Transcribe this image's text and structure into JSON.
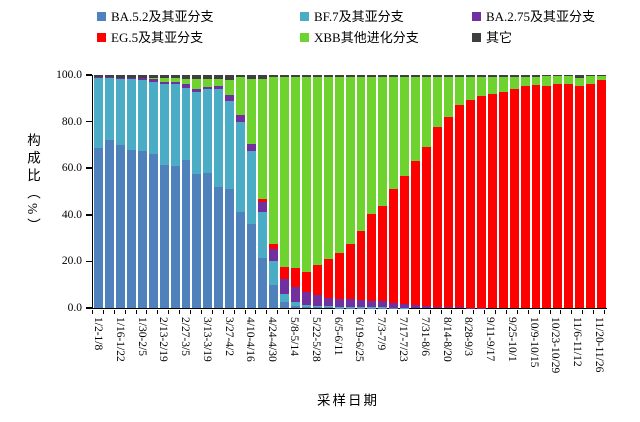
{
  "chart_data": {
    "type": "bar",
    "stacked": true,
    "title": "",
    "xlabel": "采样日期",
    "ylabel": "构成比（%）",
    "ylim": [
      0,
      100
    ],
    "ytick_step": 20,
    "ytick_labels": [
      "0.0",
      "20.0",
      "40.0",
      "60.0",
      "80.0",
      "100.0"
    ],
    "grid": false,
    "legend_position": "top",
    "n_bars": 47,
    "categories": [
      "1/2-1/8",
      "",
      "1/16-1/22",
      "",
      "1/30-2/5",
      "",
      "2/13-2/19",
      "",
      "2/27-3/5",
      "",
      "3/13-3/19",
      "",
      "3/27-4/2",
      "",
      "4/10-4/16",
      "",
      "4/24-4/30",
      "",
      "5/8-5/14",
      "",
      "5/22-5/28",
      "",
      "6/5-6/11",
      "",
      "6/19-6/25",
      "",
      "7/3-7/9",
      "",
      "7/17-7/23",
      "",
      "7/31-8/6",
      "",
      "8/14-8/20",
      "",
      "8/28-9/3",
      "",
      "9/11-9/17",
      "",
      "9/25-10/1",
      "",
      "10/9-10/15",
      "",
      "10/23-10/29",
      "",
      "11/6-11/12",
      "",
      "11/20-11/26"
    ],
    "series": [
      {
        "name": "BA.5.2及其亚分支",
        "color": "#4F81BD",
        "values": [
          68.5,
          72,
          70,
          68,
          67.5,
          66.3,
          61.3,
          61,
          63.5,
          57.5,
          58,
          52,
          51,
          41,
          36,
          21.5,
          10,
          2.5,
          1,
          0.5,
          0.5,
          0.3,
          0.2,
          0.2,
          0.2,
          0.1,
          0.1,
          0.1,
          0,
          0,
          0,
          0,
          0,
          0,
          0,
          0,
          0,
          0,
          0,
          0,
          0,
          0,
          0,
          0,
          0,
          0,
          0
        ]
      },
      {
        "name": "BF.7及其亚分支",
        "color": "#4BACC6",
        "values": [
          30.3,
          26.7,
          28.2,
          30.2,
          30.5,
          30.7,
          34.7,
          35.2,
          31,
          35,
          36,
          42,
          38,
          39,
          31.5,
          19.5,
          10,
          3.5,
          1.7,
          1,
          0.5,
          0.5,
          0.3,
          0.3,
          0.3,
          0.2,
          0.2,
          0.1,
          0.1,
          0,
          0,
          0,
          0,
          0,
          0,
          0,
          0,
          0,
          0,
          0,
          0,
          0,
          0,
          0,
          0,
          0,
          0
        ]
      },
      {
        "name": "BA.2.75及其亚分支",
        "color": "#7030A0",
        "values": [
          0.2,
          0.3,
          0.6,
          0.6,
          0.8,
          1.2,
          1.2,
          1,
          1.5,
          1.5,
          1,
          1.5,
          2.5,
          3,
          3,
          4.5,
          5.5,
          6.5,
          6.4,
          5.5,
          4.5,
          3.7,
          3.5,
          3.5,
          3,
          2.9,
          2.7,
          2,
          1.5,
          1.2,
          0.9,
          0.5,
          0.3,
          0.3,
          0.2,
          0.1,
          0,
          0,
          0,
          0,
          0,
          0,
          0,
          0,
          0,
          0,
          0
        ]
      },
      {
        "name": "EG.5及其亚分支",
        "color": "#FF0000",
        "values": [
          0,
          0,
          0,
          0,
          0,
          0,
          0,
          0,
          0,
          0,
          0,
          0,
          0,
          0,
          0,
          1.5,
          2,
          5,
          7.9,
          8.5,
          13,
          16.5,
          19.5,
          23.7,
          29.5,
          37,
          41,
          49,
          55,
          62,
          68,
          77.2,
          81.7,
          86.7,
          88.9,
          90.8,
          91.7,
          92.7,
          94.1,
          95.1,
          95.6,
          95.5,
          96,
          96.3,
          95.3,
          96,
          97.7
        ]
      },
      {
        "name": "XBB其他进化分支",
        "color": "#6FD32F",
        "values": [
          0,
          0,
          0,
          0,
          0,
          0.5,
          1.5,
          1.5,
          2.5,
          4.5,
          3.5,
          3,
          6.5,
          16,
          28,
          51.5,
          71.5,
          81.5,
          82,
          83.5,
          80.5,
          78,
          75.5,
          71.3,
          66,
          58.8,
          55,
          47.8,
          42.4,
          35.8,
          30.1,
          21.3,
          17,
          12,
          9.9,
          8.1,
          7.3,
          6.3,
          4.9,
          4.1,
          3.6,
          4,
          3.5,
          3.2,
          3.5,
          3.5,
          2
        ]
      },
      {
        "name": "其它",
        "color": "#3F3F3F",
        "values": [
          1,
          1,
          1.2,
          1.2,
          1.2,
          1.3,
          1.3,
          1.3,
          1.5,
          1.5,
          1.5,
          1.5,
          2,
          1,
          1.5,
          1.5,
          1,
          1,
          1,
          1,
          1,
          1,
          1,
          1,
          1,
          1,
          1,
          1,
          1,
          1,
          1,
          1,
          1,
          1,
          1,
          1,
          1,
          1,
          1,
          0.8,
          0.8,
          0.5,
          0.5,
          0.5,
          1.2,
          0.5,
          0.3
        ]
      }
    ]
  }
}
